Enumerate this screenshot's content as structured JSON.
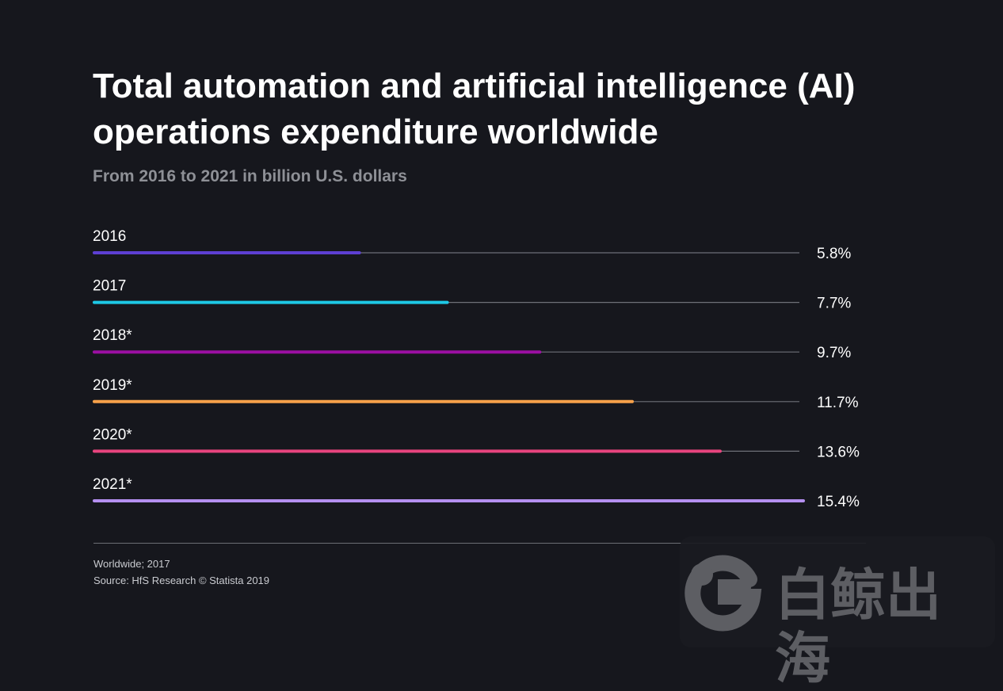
{
  "chart_data": {
    "type": "bar",
    "orientation": "horizontal",
    "title": "Total automation and artificial intelligence (AI) operations expenditure worldwide",
    "subtitle": "From 2016 to 2021 in billion U.S. dollars",
    "categories": [
      "2016",
      "2017",
      "2018*",
      "2019*",
      "2020*",
      "2021*"
    ],
    "values": [
      5.8,
      7.7,
      9.7,
      11.7,
      13.6,
      15.4
    ],
    "value_labels": [
      "5.8%",
      "7.7%",
      "9.7%",
      "11.7%",
      "13.6%",
      "15.4%"
    ],
    "colors": [
      "#5d3fd3",
      "#1ec8e6",
      "#9b0fa2",
      "#f7a14a",
      "#e8447e",
      "#b48ff0"
    ],
    "track_color": "#6e7078",
    "grid": false,
    "legend": "none"
  },
  "footer": {
    "region_note": "Worldwide; 2017",
    "source": "Source: HfS Research © Statista 2019"
  },
  "watermark": {
    "text": "白鲸出海",
    "icon": "whale-logo-icon"
  }
}
